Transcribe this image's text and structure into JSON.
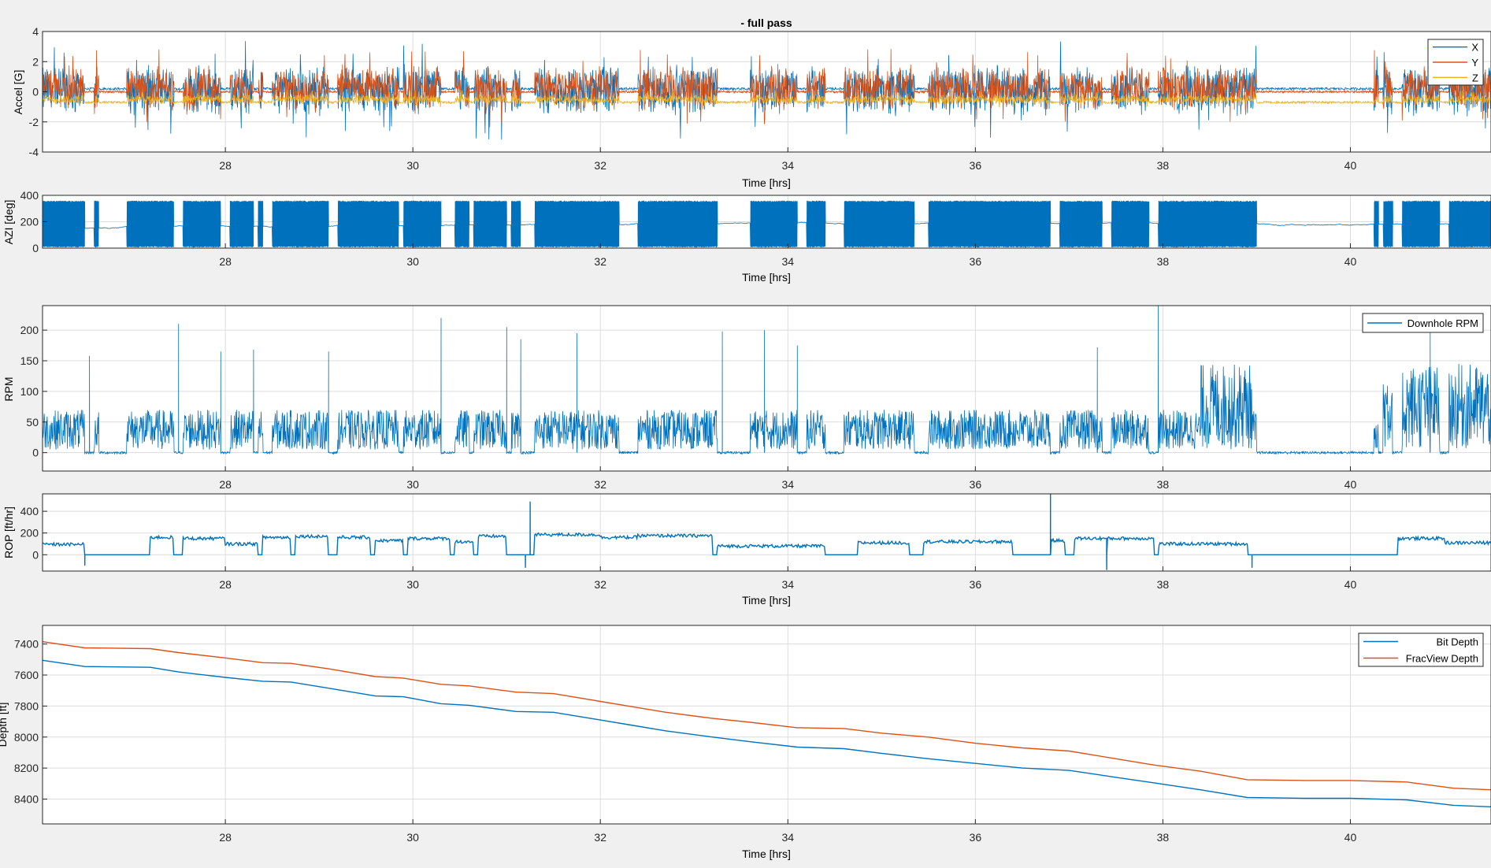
{
  "figure": {
    "title": "- full pass",
    "background": "#f0f0f0"
  },
  "colors": {
    "blue": "#0072bd",
    "orange": "#d95319",
    "yellow": "#edb120",
    "axes_bg": "#ffffff",
    "grid": "#dcdcdc"
  },
  "chart_data": [
    {
      "type": "line",
      "id": "accel",
      "title": "- full pass",
      "xlabel": "Time [hrs]",
      "ylabel": "Accel [G]",
      "xlim": [
        26.05,
        41.5
      ],
      "ylim": [
        -4,
        4
      ],
      "xticks": [
        28,
        30,
        32,
        34,
        36,
        38,
        40
      ],
      "yticks": [
        -4,
        -2,
        0,
        2,
        4
      ],
      "grid": true,
      "legend": {
        "position": "top-right",
        "entries": [
          "X",
          "Y",
          "Z"
        ]
      },
      "series": [
        {
          "name": "X",
          "color": "#0072bd",
          "center": 0.1,
          "mode": "drill",
          "amp": 1.8,
          "spike": 3.3
        },
        {
          "name": "Y",
          "color": "#d95319",
          "center": 0.25,
          "mode": "drill",
          "amp": 1.6,
          "spike": 2.6
        },
        {
          "name": "Z",
          "color": "#edb120",
          "center": -0.5,
          "mode": "drill",
          "amp": 0.35,
          "spike": 0.6
        }
      ],
      "idle_levels": [
        0.2,
        0.0,
        -0.7
      ]
    },
    {
      "type": "line",
      "id": "azi",
      "xlabel": "Time [hrs]",
      "ylabel": "AZI [deg]",
      "xlim": [
        26.05,
        41.5
      ],
      "ylim": [
        0,
        400
      ],
      "xticks": [
        28,
        30,
        32,
        34,
        36,
        38,
        40
      ],
      "yticks": [
        0,
        200,
        400
      ],
      "grid": true,
      "series": [
        {
          "name": "",
          "color": "#0072bd",
          "mode": "azimuth",
          "max": 360,
          "idle": 150
        }
      ]
    },
    {
      "type": "line",
      "id": "rpm",
      "xlabel": "",
      "ylabel": "RPM",
      "xlim": [
        26.05,
        41.5
      ],
      "ylim": [
        -30,
        240
      ],
      "xticks": [
        28,
        30,
        32,
        34,
        36,
        38,
        40
      ],
      "yticks": [
        0,
        50,
        100,
        150,
        200
      ],
      "grid": true,
      "legend": {
        "position": "top-right",
        "entries": [
          "Downhole RPM"
        ]
      },
      "series": [
        {
          "name": "Downhole RPM",
          "color": "#0072bd",
          "mode": "rpm"
        }
      ],
      "high_segments": [
        [
          38.4,
          38.95
        ],
        [
          40.3,
          41.5
        ]
      ],
      "spikes": [
        [
          26.55,
          158
        ],
        [
          27.5,
          210
        ],
        [
          27.95,
          165
        ],
        [
          28.3,
          168
        ],
        [
          29.1,
          165
        ],
        [
          30.3,
          220
        ],
        [
          31.0,
          205
        ],
        [
          31.15,
          185
        ],
        [
          31.75,
          195
        ],
        [
          33.3,
          198
        ],
        [
          33.75,
          200
        ],
        [
          34.1,
          175
        ],
        [
          37.3,
          172
        ],
        [
          37.95,
          240
        ],
        [
          40.85,
          210
        ]
      ]
    },
    {
      "type": "line",
      "id": "rop",
      "xlabel": "Time [hrs]",
      "ylabel": "ROP [ft/hr]",
      "xlim": [
        26.05,
        41.5
      ],
      "ylim": [
        -150,
        560
      ],
      "xticks": [
        28,
        30,
        32,
        34,
        36,
        38,
        40
      ],
      "yticks": [
        0,
        200,
        400
      ],
      "grid": true,
      "series": [
        {
          "name": "",
          "color": "#0072bd",
          "mode": "rop"
        }
      ],
      "segments": [
        [
          26.05,
          26.5,
          95
        ],
        [
          26.5,
          27.2,
          0
        ],
        [
          27.2,
          27.45,
          160
        ],
        [
          27.45,
          27.55,
          0
        ],
        [
          27.55,
          28.0,
          150
        ],
        [
          28.0,
          28.35,
          100
        ],
        [
          28.4,
          28.7,
          160
        ],
        [
          28.75,
          29.1,
          170
        ],
        [
          29.1,
          29.2,
          0
        ],
        [
          29.2,
          29.55,
          160
        ],
        [
          29.6,
          29.9,
          130
        ],
        [
          29.95,
          30.4,
          150
        ],
        [
          30.45,
          30.65,
          120
        ],
        [
          30.7,
          31.0,
          170
        ],
        [
          31.2,
          31.3,
          0
        ],
        [
          31.3,
          32.0,
          185
        ],
        [
          32.0,
          32.4,
          160
        ],
        [
          32.4,
          33.2,
          175
        ],
        [
          33.25,
          34.4,
          80
        ],
        [
          34.4,
          34.7,
          0
        ],
        [
          34.75,
          35.3,
          110
        ],
        [
          35.3,
          35.45,
          0
        ],
        [
          35.45,
          36.4,
          120
        ],
        [
          36.4,
          36.8,
          0
        ],
        [
          36.8,
          36.95,
          130
        ],
        [
          37.05,
          37.9,
          150
        ],
        [
          37.95,
          38.9,
          100
        ],
        [
          38.9,
          39.0,
          0
        ],
        [
          39.0,
          40.5,
          0
        ],
        [
          40.5,
          41.0,
          150
        ],
        [
          41.0,
          41.5,
          110
        ]
      ],
      "spikes": [
        [
          31.25,
          490
        ],
        [
          36.8,
          560
        ],
        [
          31.2,
          -120
        ],
        [
          37.4,
          -140
        ],
        [
          26.5,
          -100
        ],
        [
          38.95,
          -120
        ]
      ]
    },
    {
      "type": "line",
      "id": "depth",
      "xlabel": "Time [hrs]",
      "ylabel": "Depth [ft]",
      "xlim": [
        26.05,
        41.5
      ],
      "ylim": [
        8560,
        7280
      ],
      "y_reversed": true,
      "xticks": [
        28,
        30,
        32,
        34,
        36,
        38,
        40
      ],
      "yticks": [
        7400,
        7600,
        7800,
        8000,
        8200,
        8400
      ],
      "grid": true,
      "legend": {
        "position": "top-right",
        "entries": [
          "Bit Depth",
          "FracView Depth"
        ]
      },
      "series": [
        {
          "name": "Bit Depth",
          "color": "#0072bd",
          "x": [
            26.05,
            26.5,
            27.2,
            27.5,
            28.0,
            28.4,
            28.7,
            29.1,
            29.6,
            29.9,
            30.3,
            30.6,
            31.1,
            31.5,
            32.0,
            32.3,
            32.7,
            33.2,
            33.6,
            34.1,
            34.6,
            35.0,
            35.5,
            36.0,
            36.5,
            37.0,
            37.5,
            37.9,
            38.4,
            38.9,
            39.5,
            40.0,
            40.6,
            41.1,
            41.5
          ],
          "y": [
            7505,
            7545,
            7550,
            7580,
            7615,
            7640,
            7645,
            7685,
            7735,
            7740,
            7785,
            7795,
            7835,
            7840,
            7890,
            7920,
            7960,
            8000,
            8030,
            8065,
            8075,
            8105,
            8140,
            8170,
            8200,
            8215,
            8260,
            8295,
            8340,
            8390,
            8395,
            8395,
            8405,
            8440,
            8450
          ]
        },
        {
          "name": "FracView Depth",
          "color": "#d95319",
          "x": [
            26.05,
            26.5,
            27.2,
            27.5,
            28.0,
            28.4,
            28.7,
            29.1,
            29.6,
            29.9,
            30.3,
            30.6,
            31.1,
            31.5,
            32.0,
            32.3,
            32.7,
            33.2,
            33.6,
            34.1,
            34.6,
            35.0,
            35.5,
            36.0,
            36.5,
            37.0,
            37.5,
            37.9,
            38.4,
            38.9,
            39.5,
            40.0,
            40.6,
            41.1,
            41.5
          ],
          "y": [
            7385,
            7425,
            7430,
            7455,
            7490,
            7520,
            7525,
            7560,
            7610,
            7620,
            7660,
            7670,
            7710,
            7720,
            7770,
            7800,
            7840,
            7880,
            7905,
            7940,
            7945,
            7975,
            8000,
            8040,
            8070,
            8090,
            8140,
            8180,
            8220,
            8275,
            8280,
            8280,
            8290,
            8330,
            8340
          ]
        }
      ]
    }
  ],
  "drilling_intervals": [
    [
      26.05,
      26.5
    ],
    [
      26.6,
      26.65
    ],
    [
      26.95,
      27.45
    ],
    [
      27.55,
      27.95
    ],
    [
      28.05,
      28.3
    ],
    [
      28.35,
      28.4
    ],
    [
      28.5,
      29.1
    ],
    [
      29.2,
      29.85
    ],
    [
      29.9,
      30.3
    ],
    [
      30.45,
      30.6
    ],
    [
      30.65,
      31.0
    ],
    [
      31.05,
      31.15
    ],
    [
      31.3,
      32.2
    ],
    [
      32.4,
      33.25
    ],
    [
      33.6,
      34.1
    ],
    [
      34.2,
      34.4
    ],
    [
      34.6,
      35.35
    ],
    [
      35.5,
      36.8
    ],
    [
      36.9,
      37.35
    ],
    [
      37.45,
      37.85
    ],
    [
      37.95,
      39.0
    ],
    [
      40.25,
      40.3
    ],
    [
      40.35,
      40.45
    ],
    [
      40.55,
      40.95
    ],
    [
      41.05,
      41.5
    ]
  ]
}
